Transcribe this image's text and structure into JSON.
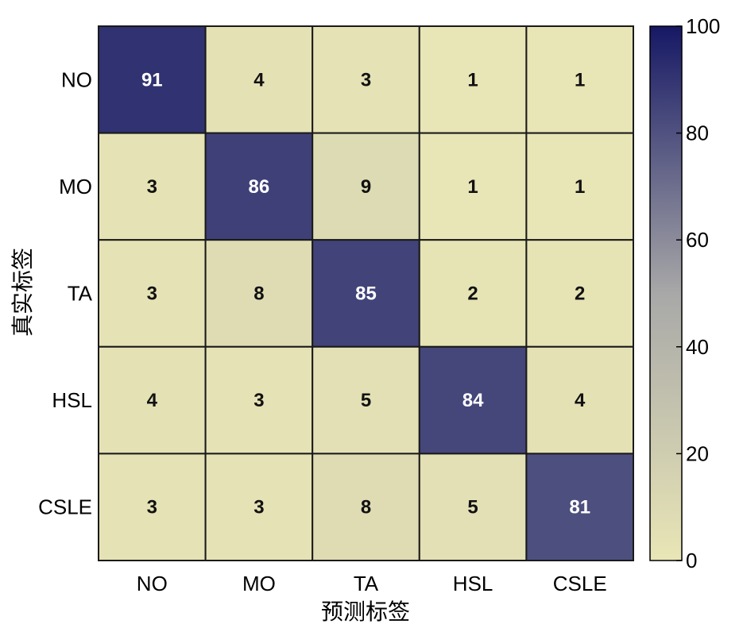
{
  "chart_data": {
    "type": "heatmap",
    "title": "",
    "xlabel": "预测标签",
    "ylabel": "真实标签",
    "x_categories": [
      "NO",
      "MO",
      "TA",
      "HSL",
      "CSLE"
    ],
    "y_categories": [
      "NO",
      "MO",
      "TA",
      "HSL",
      "CSLE"
    ],
    "values": [
      [
        91,
        4,
        3,
        1,
        1
      ],
      [
        3,
        86,
        9,
        1,
        1
      ],
      [
        3,
        8,
        85,
        2,
        2
      ],
      [
        4,
        3,
        5,
        84,
        4
      ],
      [
        3,
        3,
        8,
        5,
        81
      ]
    ],
    "colorbar": {
      "range": [
        0,
        100
      ],
      "ticks": [
        0,
        20,
        40,
        60,
        80,
        100
      ],
      "low_color": "#e9e6b6",
      "mid_color": "#a8a8a8",
      "high_color": "#161865"
    },
    "grid": true
  }
}
